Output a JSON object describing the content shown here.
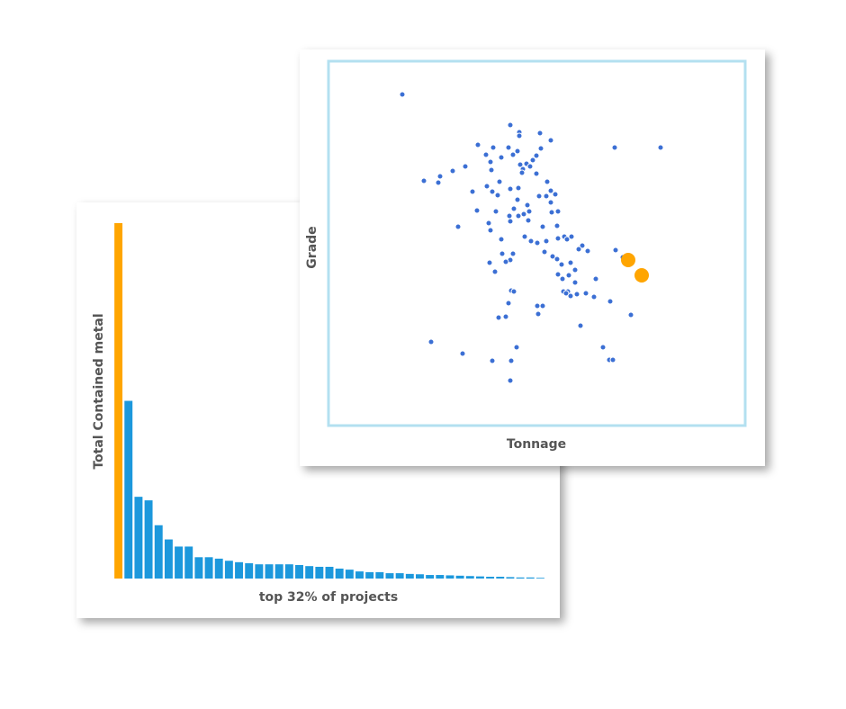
{
  "chart_data": [
    {
      "type": "bar",
      "ylabel": "Total Contained metal",
      "xlabel": "top 32% of projects",
      "ylim": [
        0,
        100
      ],
      "values": [
        100,
        50,
        23,
        22,
        15,
        11,
        9,
        9,
        6,
        6,
        5.6,
        5,
        4.6,
        4.3,
        4,
        4,
        4,
        4,
        3.8,
        3.5,
        3.3,
        3.3,
        2.8,
        2.5,
        2,
        1.8,
        1.8,
        1.5,
        1.5,
        1.3,
        1.2,
        1,
        1,
        0.9,
        0.8,
        0.7,
        0.6,
        0.5,
        0.5,
        0.4,
        0.3,
        0.3,
        0.2
      ],
      "colors": [
        "#ffa500",
        "#1c98dc",
        "#1c98dc",
        "#1c98dc",
        "#1c98dc",
        "#1c98dc",
        "#1c98dc",
        "#1c98dc",
        "#1c98dc",
        "#1c98dc",
        "#1c98dc",
        "#1c98dc",
        "#1c98dc",
        "#1c98dc",
        "#1c98dc",
        "#1c98dc",
        "#1c98dc",
        "#1c98dc",
        "#1c98dc",
        "#1c98dc",
        "#1c98dc",
        "#1c98dc",
        "#1c98dc",
        "#1c98dc",
        "#1c98dc",
        "#1c98dc",
        "#1c98dc",
        "#1c98dc",
        "#1c98dc",
        "#1c98dc",
        "#1c98dc",
        "#1c98dc",
        "#1c98dc",
        "#1c98dc",
        "#1c98dc",
        "#1c98dc",
        "#1c98dc",
        "#1c98dc",
        "#1c98dc",
        "#1c98dc",
        "#1c98dc",
        "#1c98dc",
        "#1c98dc"
      ]
    },
    {
      "type": "scatter",
      "xlabel": "Tonnage",
      "ylabel": "Grade",
      "xlim": [
        0,
        463
      ],
      "ylim": [
        0,
        405
      ],
      "series": [
        {
          "color": "#3b6fd4",
          "x": [
            82,
            202,
            212,
            235,
            212,
            247,
            166,
            183,
            200,
            210,
            318,
            369,
            175,
            192,
            205,
            236,
            231,
            227,
            180,
            213,
            220,
            224,
            216,
            152,
            138,
            124,
            122,
            106,
            181,
            215,
            231,
            190,
            243,
            176,
            182,
            202,
            211,
            160,
            188,
            247,
            234,
            242,
            210,
            252,
            247,
            221,
            206,
            211,
            201,
            217,
            165,
            186,
            223,
            248,
            255,
            144,
            178,
            180,
            202,
            222,
            238,
            254,
            262,
            265,
            270,
            225,
            232,
            218,
            192,
            255,
            242,
            282,
            288,
            278,
            240,
            205,
            193,
            202,
            249,
            254,
            179,
            197,
            185,
            259,
            269,
            274,
            319,
            327,
            255,
            260,
            267,
            274,
            297,
            266,
            261,
            264,
            269,
            276,
            286,
            295,
            313,
            203,
            206,
            200,
            232,
            238,
            233,
            189,
            197,
            336,
            280,
            114,
            209,
            305,
            149,
            182,
            203,
            312,
            316,
            202
          ],
          "values": [
            368,
            334,
            326,
            325,
            322,
            317,
            312,
            309,
            309,
            305,
            309,
            309,
            301,
            298,
            301,
            308,
            300,
            295,
            293,
            290,
            291,
            288,
            285,
            288,
            283,
            277,
            270,
            272,
            284,
            281,
            280,
            271,
            271,
            266,
            260,
            263,
            264,
            260,
            256,
            261,
            255,
            255,
            251,
            257,
            248,
            245,
            241,
            233,
            233,
            235,
            239,
            238,
            238,
            237,
            238,
            221,
            225,
            217,
            227,
            228,
            221,
            222,
            210,
            207,
            210,
            205,
            203,
            210,
            207,
            208,
            205,
            200,
            194,
            196,
            193,
            191,
            191,
            184,
            188,
            185,
            181,
            182,
            171,
            179,
            181,
            173,
            195,
            187,
            168,
            163,
            167,
            159,
            163,
            149,
            149,
            147,
            144,
            146,
            147,
            143,
            138,
            150,
            149,
            136,
            133,
            133,
            124,
            120,
            121,
            123,
            111,
            93,
            87,
            87,
            80,
            72,
            72,
            73,
            73,
            50
          ]
        },
        {
          "color": "#ffa500",
          "x": [
            333,
            348
          ],
          "values": [
            184,
            167
          ]
        }
      ]
    }
  ]
}
